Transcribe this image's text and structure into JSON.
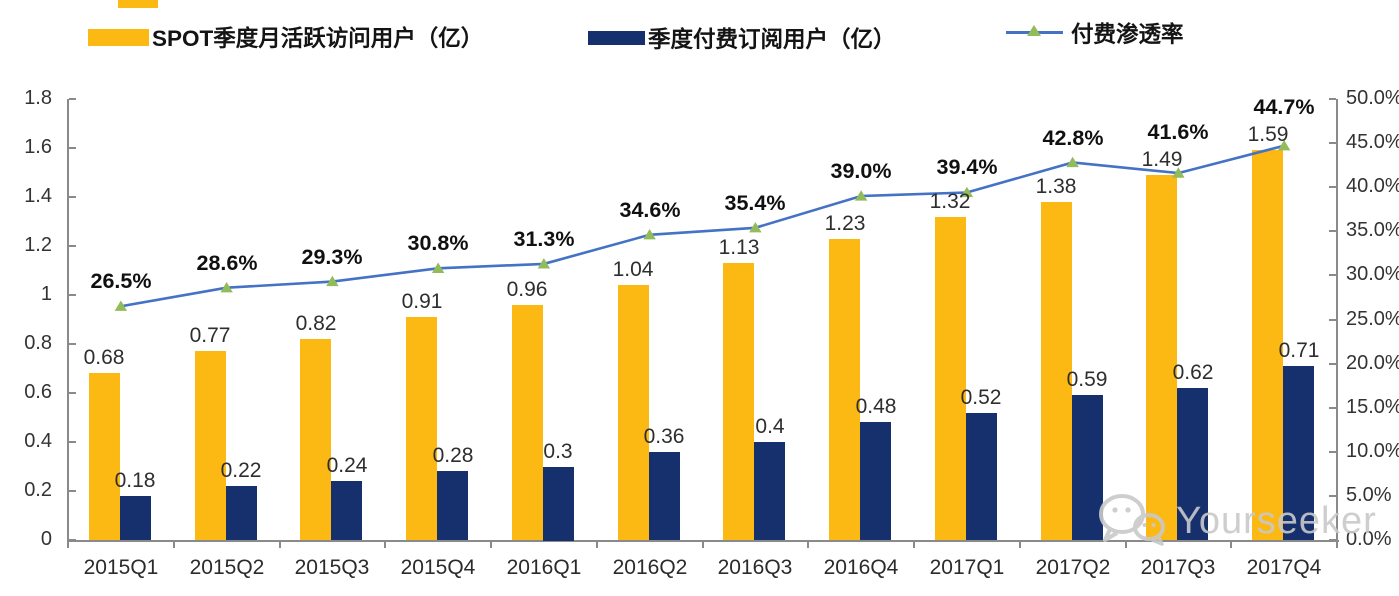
{
  "legend": {
    "items": [
      {
        "label": "SPOT季度月活跃访问用户（亿）",
        "swatch": "bar",
        "color": "#FCB813"
      },
      {
        "label": "季度付费订阅用户（亿）",
        "swatch": "bar",
        "color": "#16306E"
      },
      {
        "label": "付费渗透率",
        "swatch": "line",
        "color": "#4472C4",
        "marker_color": "#92BB5B"
      }
    ]
  },
  "watermark": {
    "text": "Yourseeker"
  },
  "chart_data": {
    "type": "bar",
    "combo": "bar+line",
    "title": "",
    "xlabel": "",
    "ylabel": "",
    "grid": false,
    "legend_position": "top",
    "categories": [
      "2015Q1",
      "2015Q2",
      "2015Q3",
      "2015Q4",
      "2016Q1",
      "2016Q2",
      "2016Q3",
      "2016Q4",
      "2017Q1",
      "2017Q2",
      "2017Q3",
      "2017Q4"
    ],
    "series": [
      {
        "name": "SPOT季度月活跃访问用户（亿）",
        "type": "bar",
        "axis": "left",
        "color": "#FCB813",
        "values": [
          0.68,
          0.77,
          0.82,
          0.91,
          0.96,
          1.04,
          1.13,
          1.23,
          1.32,
          1.38,
          1.49,
          1.59
        ],
        "labels": [
          "0.68",
          "0.77",
          "0.82",
          "0.91",
          "0.96",
          "1.04",
          "1.13",
          "1.23",
          "1.32",
          "1.38",
          "1.49",
          "1.59"
        ]
      },
      {
        "name": "季度付费订阅用户（亿）",
        "type": "bar",
        "axis": "left",
        "color": "#16306E",
        "values": [
          0.18,
          0.22,
          0.24,
          0.28,
          0.3,
          0.36,
          0.4,
          0.48,
          0.52,
          0.59,
          0.62,
          0.71
        ],
        "labels": [
          "0.18",
          "0.22",
          "0.24",
          "0.28",
          "0.3",
          "0.36",
          "0.4",
          "0.48",
          "0.52",
          "0.59",
          "0.62",
          "0.71"
        ]
      },
      {
        "name": "付费渗透率",
        "type": "line",
        "axis": "right",
        "color": "#4472C4",
        "marker": "triangle",
        "marker_color": "#92BB5B",
        "values": [
          26.5,
          28.6,
          29.3,
          30.8,
          31.3,
          34.6,
          35.4,
          39.0,
          39.4,
          42.8,
          41.6,
          44.7
        ],
        "labels": [
          "26.5%",
          "28.6%",
          "29.3%",
          "30.8%",
          "31.3%",
          "34.6%",
          "35.4%",
          "39.0%",
          "39.4%",
          "42.8%",
          "41.6%",
          "44.7%"
        ]
      }
    ],
    "left_axis": {
      "min": 0,
      "max": 1.8,
      "tick_labels": [
        "1.8",
        "1.6",
        "1.4",
        "1.2",
        "1",
        "0.8",
        "0.6",
        "0.4",
        "0.2",
        "0"
      ]
    },
    "right_axis": {
      "min": 0,
      "max": 50,
      "tick_labels": [
        "50.0%",
        "45.0%",
        "40.0%",
        "35.0%",
        "30.0%",
        "25.0%",
        "20.0%",
        "15.0%",
        "10.0%",
        "5.0%",
        "0.0%"
      ]
    }
  }
}
